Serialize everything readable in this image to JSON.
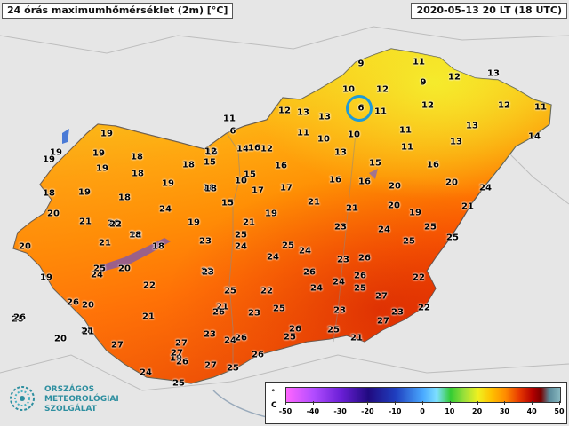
{
  "header": {
    "title": "24 órás maximumhőmérséklet (2m) [°C]",
    "datetime": "2020-05-13 20 LT (18 UTC)"
  },
  "legend": {
    "unit_top": "°",
    "unit_bottom": "C",
    "ticks": [
      "-50",
      "-40",
      "-30",
      "-20",
      "-10",
      "0",
      "10",
      "20",
      "30",
      "40",
      "50"
    ]
  },
  "logo": {
    "line1": "ORSZÁGOS",
    "line2": "METEOROLÓGIAI",
    "line3": "SZOLGÁLAT"
  },
  "colors": {
    "cold_yellow": "#f2f020",
    "mid_orange": "#ff9a10",
    "hot_red": "#e02000",
    "outside_land": "#e6e6e6",
    "highlight_circle": "#1e9bd7"
  },
  "stations": [
    "9",
    "11",
    "10",
    "12",
    "9",
    "13",
    "12",
    "6",
    "11",
    "12",
    "12",
    "11",
    "11",
    "12",
    "13",
    "13",
    "11",
    "6",
    "11",
    "10",
    "10",
    "11",
    "13",
    "13",
    "14",
    "16",
    "12",
    "14",
    "16",
    "15",
    "12",
    "13",
    "15",
    "16",
    "19",
    "19",
    "18",
    "18",
    "15",
    "19",
    "19",
    "19",
    "18",
    "10",
    "15",
    "17",
    "18",
    "15",
    "17",
    "16",
    "16",
    "20",
    "20",
    "19",
    "18",
    "18",
    "19",
    "18",
    "24",
    "21",
    "19",
    "20",
    "21",
    "20",
    "21",
    "19",
    "20",
    "21",
    "24",
    "22",
    "22",
    "21",
    "19",
    "18",
    "18",
    "23",
    "24",
    "25",
    "24",
    "25",
    "25",
    "25",
    "25",
    "23",
    "21",
    "20",
    "24",
    "24",
    "26",
    "23",
    "25",
    "20",
    "22",
    "24",
    "26",
    "24",
    "19",
    "22",
    "27",
    "26",
    "25",
    "20",
    "22",
    "23",
    "21",
    "22",
    "24",
    "25",
    "25",
    "26",
    "26",
    "23",
    "23",
    "21",
    "25",
    "22",
    "27",
    "26",
    "28",
    "24",
    "26",
    "26",
    "25",
    "27",
    "27",
    "21",
    "23",
    "20",
    "23",
    "19",
    "26",
    "25",
    "21",
    "26",
    "24",
    "25",
    "25",
    "27",
    "27",
    "24",
    "20",
    "26",
    "23",
    "25"
  ],
  "station_marker": {
    "value": "6"
  }
}
